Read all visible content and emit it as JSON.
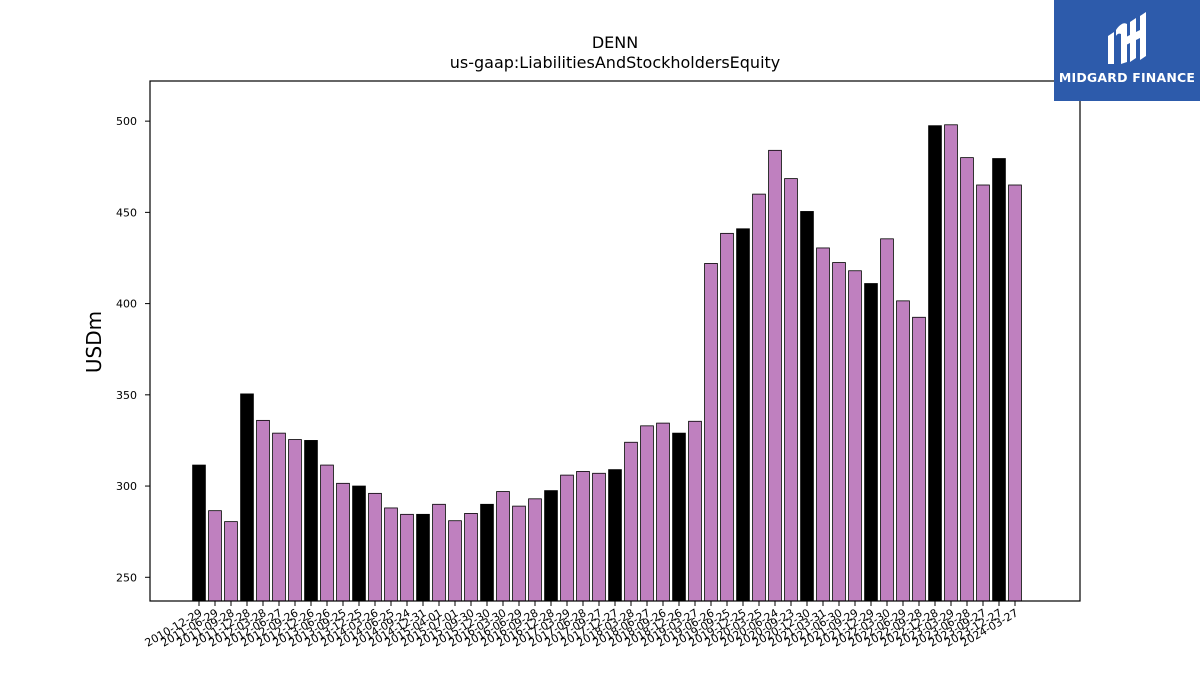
{
  "chart_data": {
    "type": "bar",
    "title": "DENN",
    "subtitle": "us-gaap:LiabilitiesAndStockholdersEquity",
    "xlabel": "",
    "ylabel": "USDm",
    "ylim": [
      237,
      522
    ],
    "yticks": [
      250,
      300,
      350,
      400,
      450,
      500
    ],
    "grid": false,
    "categories": [
      "2010-12-29",
      "2011-06-29",
      "2011-09-28",
      "2011-12-28",
      "2012-03-28",
      "2012-06-27",
      "2012-09-26",
      "2012-12-26",
      "2013-06-26",
      "2013-09-25",
      "2013-12-25",
      "2014-03-26",
      "2014-06-25",
      "2014-09-24",
      "2014-12-31",
      "2015-04-01",
      "2015-07-01",
      "2015-09-30",
      "2015-12-30",
      "2016-03-30",
      "2016-06-29",
      "2016-09-28",
      "2016-12-28",
      "2017-03-29",
      "2017-06-28",
      "2017-09-27",
      "2017-12-27",
      "2018-03-28",
      "2018-06-27",
      "2018-09-26",
      "2018-12-26",
      "2019-03-27",
      "2019-06-26",
      "2019-09-25",
      "2019-12-25",
      "2020-03-25",
      "2020-06-24",
      "2020-09-23",
      "2020-12-30",
      "2021-03-31",
      "2021-06-30",
      "2021-09-29",
      "2021-12-29",
      "2022-03-30",
      "2022-06-29",
      "2022-09-28",
      "2022-12-28",
      "2023-03-29",
      "2023-06-28",
      "2023-09-27",
      "2023-12-27",
      "2024-03-27"
    ],
    "values": [
      311.5,
      286.5,
      280.5,
      350.5,
      336.0,
      329.0,
      325.5,
      325.0,
      311.5,
      301.5,
      300.0,
      296.0,
      288.0,
      284.5,
      284.5,
      290.0,
      281.0,
      285.0,
      290.0,
      297.0,
      289.0,
      293.0,
      297.5,
      306.0,
      308.0,
      307.0,
      309.0,
      324.0,
      333.0,
      334.5,
      329.0,
      335.5,
      422.0,
      438.5,
      441.0,
      460.0,
      484.0,
      468.5,
      450.5,
      430.5,
      422.5,
      418.0,
      411.0,
      435.5,
      401.5,
      392.5,
      497.5,
      498.0,
      480.0,
      465.0,
      479.5,
      465.0
    ],
    "fiscal_year_end": [
      true,
      false,
      false,
      true,
      false,
      false,
      false,
      true,
      false,
      false,
      true,
      false,
      false,
      false,
      true,
      false,
      false,
      false,
      true,
      false,
      false,
      false,
      true,
      false,
      false,
      false,
      true,
      false,
      false,
      false,
      true,
      false,
      false,
      false,
      true,
      false,
      false,
      false,
      true,
      false,
      false,
      false,
      true,
      false,
      false,
      false,
      true,
      false,
      false,
      false,
      true,
      false
    ],
    "colors": {
      "highlight": "#000000",
      "default": "#bf80bf",
      "edge": "#000000"
    }
  },
  "logo": {
    "text": "MIDGARD FINANCE",
    "background": "#2d5bab"
  }
}
